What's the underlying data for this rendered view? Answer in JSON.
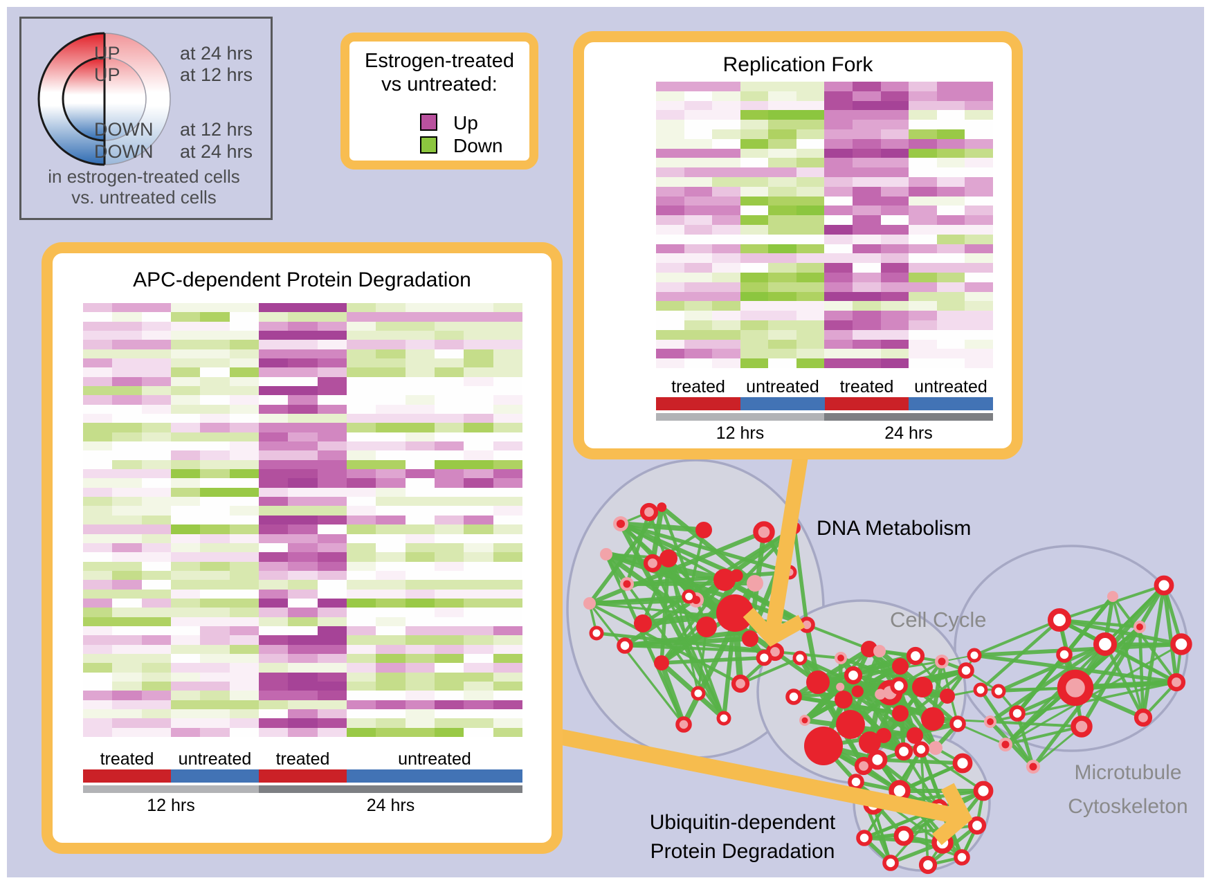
{
  "colors": {
    "background": "#cbcde4",
    "panel_border_orange": "#f8bd51",
    "arrow_orange": "#f6bc4e",
    "legend_box_border": "#58595b",
    "treated_bar_red": "#cb2127",
    "untreated_bar_blue": "#4273b5",
    "hrs12_bar_gray": "#b2b3b6",
    "hrs24_bar_gray": "#7d7f83",
    "up_magenta": "#b9519e",
    "down_green": "#8cc63f",
    "node_red": "#e8232d",
    "node_pink": "#f2a3a9",
    "edge_green": "#57b247",
    "cluster_fill": "#d4d5e0",
    "cluster_stroke": "#a6a8c4",
    "gradient_red": "#e2222a",
    "gradient_blue": "#2e6bb2"
  },
  "circle_legend": {
    "rows": [
      {
        "word": "UP",
        "time": "at 24 hrs"
      },
      {
        "word": "UP",
        "time": "at 12 hrs"
      },
      {
        "word": "DOWN",
        "time": "at 12 hrs"
      },
      {
        "word": "DOWN",
        "time": "at 24 hrs"
      }
    ],
    "footer_line1": "in estrogen-treated cells",
    "footer_line2": "vs. untreated cells"
  },
  "updown_legend": {
    "title_line1": "Estrogen-treated",
    "title_line2": "vs untreated:",
    "items": [
      {
        "label": "Up",
        "color": "#b9519e"
      },
      {
        "label": "Down",
        "color": "#8cc63f"
      }
    ]
  },
  "panels": {
    "replication_fork": {
      "title": "Replication Fork",
      "condition_labels": [
        "treated",
        "untreated",
        "treated",
        "untreated"
      ],
      "time_labels": [
        "12 hrs",
        "24 hrs"
      ],
      "heatmap": {
        "rows": 30,
        "col_groups": [
          3,
          3,
          3,
          3
        ],
        "group_bias": [
          "pink_light",
          "green",
          "magenta_strong",
          "mixed"
        ],
        "seed": 101
      }
    },
    "apc": {
      "title": "APC-dependent Protein Degradation",
      "condition_labels": [
        "treated",
        "untreated",
        "treated",
        "untreated"
      ],
      "time_labels": [
        "12 hrs",
        "24 hrs"
      ],
      "heatmap": {
        "rows": 47,
        "col_groups": [
          3,
          3,
          3,
          6
        ],
        "group_bias": [
          "mixed_light",
          "green_light",
          "magenta_strong",
          "mixed"
        ],
        "seed": 202
      }
    }
  },
  "network": {
    "labels": {
      "dna": "DNA Metabolism",
      "cell_cycle": "Cell Cycle",
      "microtubule_line1": "Microtubule",
      "microtubule_line2": "Cytoskeleton",
      "ubiquitin_line1": "Ubiquitin-dependent",
      "ubiquitin_line2": "Protein Degradation"
    }
  },
  "heatmap_palette": {
    "magenta": [
      "#faf0f7",
      "#f3dcee",
      "#eac3e0",
      "#dfa5d1",
      "#d287c1",
      "#c268af",
      "#b2509e",
      "#a64397"
    ],
    "green": [
      "#f3f7e6",
      "#e7f0cd",
      "#d8e8af",
      "#c5dd8a",
      "#afd262",
      "#99c946",
      "#8cc63f"
    ],
    "near_white": "#fefefe"
  }
}
